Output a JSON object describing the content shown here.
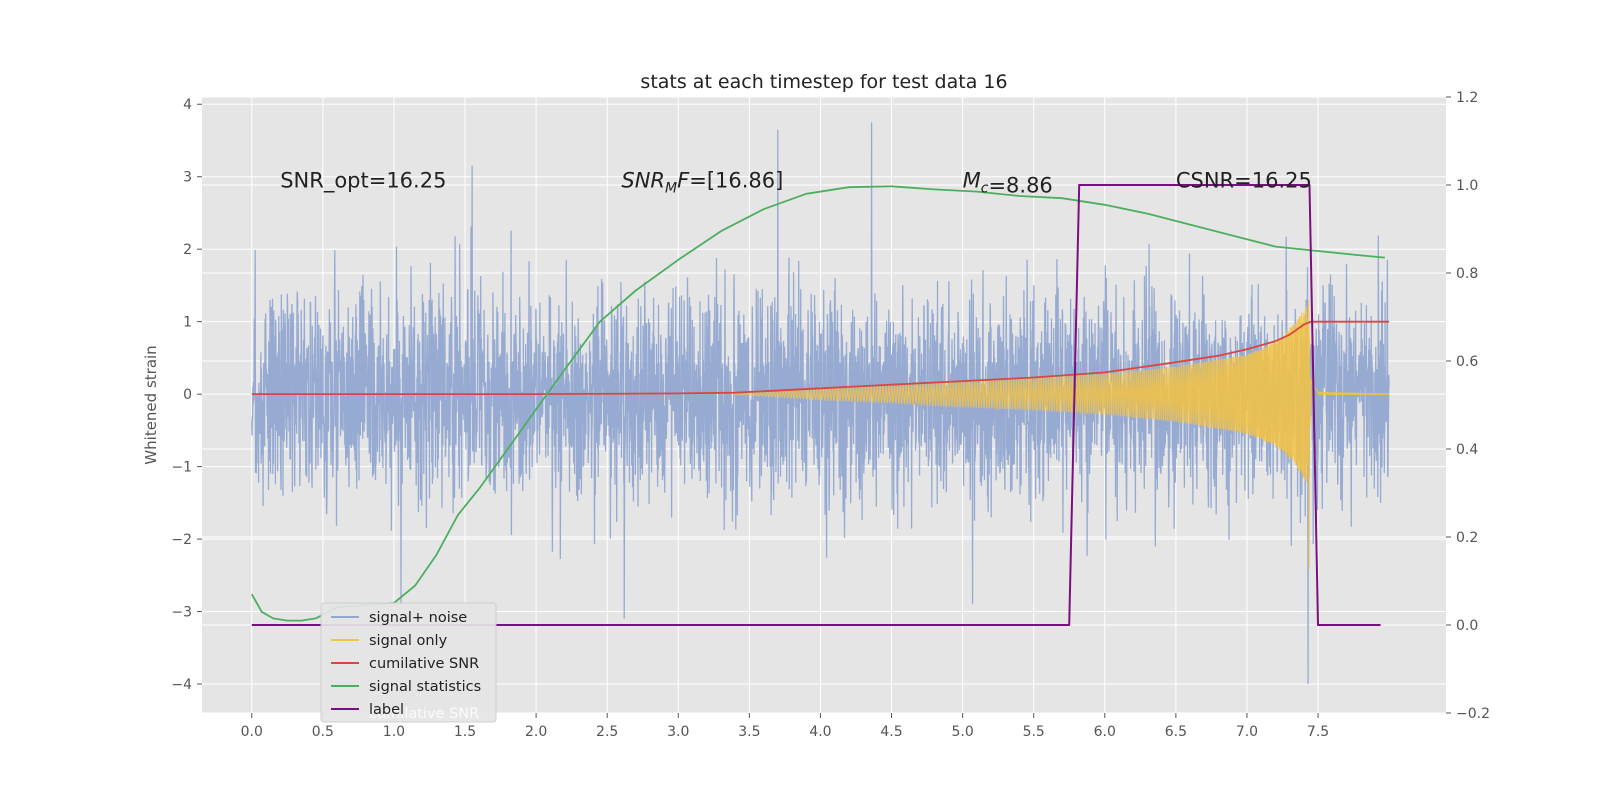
{
  "chart_data": {
    "type": "line",
    "title": "stats at each timestep for test data 16",
    "ylabel": "Whitened strain",
    "xlabel": "",
    "grid": true,
    "legend_placement": "lower-left",
    "x_range": [
      -0.35,
      8.4
    ],
    "y_left_range": [
      -4.4,
      4.1
    ],
    "y_right_range": [
      -0.2,
      1.2
    ],
    "x_ticks": [
      "0.0",
      "0.5",
      "1.0",
      "1.5",
      "2.0",
      "2.5",
      "3.0",
      "3.5",
      "4.0",
      "4.5",
      "5.0",
      "5.5",
      "6.0",
      "6.5",
      "7.0",
      "7.5"
    ],
    "y_left_ticks": [
      "−4",
      "−3",
      "−2",
      "−1",
      "0",
      "1",
      "2",
      "3",
      "4"
    ],
    "y_right_ticks": [
      "−0.2",
      "0.0",
      "0.2",
      "0.4",
      "0.6",
      "0.8",
      "1.0",
      "1.2"
    ],
    "annotations": [
      {
        "id": "snr-opt",
        "text": "SNR_opt=16.25",
        "x": 0.2,
        "y": 2.95
      },
      {
        "id": "snr-mf",
        "text": "[16.86]",
        "prefix": "SNR",
        "sub": "M",
        "suffix": "F=",
        "x": 2.6,
        "y": 2.95
      },
      {
        "id": "mc",
        "text": "=8.86",
        "prefix": "M",
        "sub": "c",
        "suffix": "",
        "x": 5.0,
        "y": 2.95
      },
      {
        "id": "csnr",
        "text": "CSNR=16.25",
        "x": 6.5,
        "y": 2.95
      }
    ],
    "legend": [
      {
        "name": "signal+ noise",
        "color": "#92a8d1"
      },
      {
        "name": "signal only",
        "color": "#f5c242"
      },
      {
        "name": "cumilative SNR",
        "color": "#d9473e"
      },
      {
        "name": "signal statistics",
        "color": "#4caf5e"
      },
      {
        "name": "label",
        "color": "#7b0f80"
      }
    ],
    "legend_shadow_text": "cumilative SNR",
    "series": [
      {
        "name": "signal+ noise",
        "axis": "left",
        "color": "#92a8d1",
        "description": "noisy whitened strain sampled over 0–8 s",
        "x_range": [
          0.0,
          8.0
        ],
        "amplitude_range": [
          -4.0,
          3.75
        ],
        "spikes": [
          {
            "x": 1.55,
            "y": 3.15
          },
          {
            "x": 3.7,
            "y": 3.65
          },
          {
            "x": 4.36,
            "y": 3.75
          },
          {
            "x": 2.62,
            "y": -3.1
          },
          {
            "x": 7.43,
            "y": -4.0
          },
          {
            "x": 1.05,
            "y": -2.9
          },
          {
            "x": 5.07,
            "y": -2.9
          }
        ]
      },
      {
        "name": "signal only",
        "axis": "left",
        "color": "#f5c242",
        "description": "chirp with growing amplitude until merger",
        "envelope_x": [
          3.4,
          4.0,
          4.5,
          5.0,
          5.5,
          6.0,
          6.5,
          7.0,
          7.2,
          7.35,
          7.42,
          7.45,
          7.5,
          8.0
        ],
        "envelope_y": [
          0.0,
          0.08,
          0.12,
          0.18,
          0.22,
          0.28,
          0.38,
          0.55,
          0.72,
          1.0,
          1.25,
          0.2,
          0.03,
          0.0
        ],
        "peak": {
          "x": 7.44,
          "y_min": -2.4,
          "y_max": 1.3
        }
      },
      {
        "name": "cumilative SNR",
        "axis": "left",
        "color": "#d9473e",
        "x": [
          0.0,
          1.0,
          2.0,
          3.0,
          3.4,
          4.0,
          4.5,
          5.0,
          5.5,
          6.0,
          6.5,
          6.8,
          7.0,
          7.2,
          7.3,
          7.4,
          7.45,
          7.5,
          8.0
        ],
        "y": [
          0.0,
          0.0,
          0.0,
          0.01,
          0.02,
          0.08,
          0.13,
          0.18,
          0.23,
          0.3,
          0.44,
          0.53,
          0.62,
          0.73,
          0.82,
          0.96,
          1.0,
          1.0,
          1.0
        ]
      },
      {
        "name": "signal statistics",
        "axis": "right",
        "color": "#4caf5e",
        "x": [
          0.0,
          0.07,
          0.15,
          0.25,
          0.35,
          0.45,
          0.6,
          0.8,
          1.0,
          1.15,
          1.3,
          1.45,
          1.6,
          1.8,
          2.0,
          2.2,
          2.45,
          2.7,
          3.0,
          3.3,
          3.6,
          3.9,
          4.2,
          4.5,
          4.8,
          5.1,
          5.4,
          5.7,
          6.0,
          6.3,
          6.6,
          6.9,
          7.2,
          7.5,
          7.8,
          7.97
        ],
        "y": [
          0.07,
          0.03,
          0.015,
          0.01,
          0.01,
          0.015,
          0.04,
          0.045,
          0.05,
          0.09,
          0.16,
          0.25,
          0.31,
          0.4,
          0.49,
          0.58,
          0.69,
          0.76,
          0.83,
          0.895,
          0.945,
          0.98,
          0.995,
          0.997,
          0.99,
          0.985,
          0.975,
          0.97,
          0.955,
          0.935,
          0.91,
          0.885,
          0.86,
          0.85,
          0.84,
          0.835
        ]
      },
      {
        "name": "label",
        "axis": "right",
        "color": "#7b0f80",
        "x": [
          0.0,
          5.75,
          5.82,
          7.44,
          7.5,
          7.94
        ],
        "y": [
          0.0,
          0.0,
          1.0,
          1.0,
          0.0,
          0.0
        ]
      }
    ]
  }
}
